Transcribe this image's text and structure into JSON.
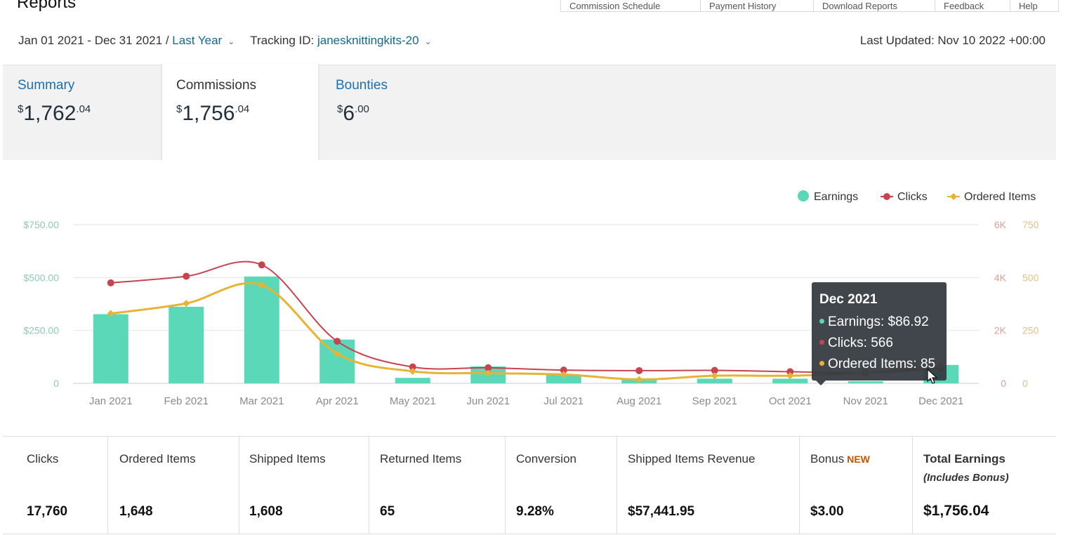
{
  "page": {
    "title": "Reports",
    "top_tabs": [
      "Commission Schedule",
      "Payment History",
      "Download Reports",
      "Feedback",
      "Help"
    ]
  },
  "filters": {
    "date_range": "Jan 01 2021 - Dec 31 2021 /",
    "period": "Last Year",
    "tracking_label": "Tracking ID:",
    "tracking_id": "janesknittingkits-20",
    "last_updated": "Last Updated: Nov 10 2022 +00:00"
  },
  "summary_tabs": [
    {
      "label": "Summary",
      "dollars": "1,762",
      "cents": ".04"
    },
    {
      "label": "Commissions",
      "dollars": "1,756",
      "cents": ".04"
    },
    {
      "label": "Bounties",
      "dollars": "6",
      "cents": ".00"
    }
  ],
  "currency_symbol": "$",
  "chart_data": {
    "type": "bar",
    "categories": [
      "Jan 2021",
      "Feb 2021",
      "Mar 2021",
      "Apr 2021",
      "May 2021",
      "Jun 2021",
      "Jul 2021",
      "Aug 2021",
      "Sep 2021",
      "Oct 2021",
      "Nov 2021",
      "Dec 2021"
    ],
    "series": [
      {
        "name": "Earnings",
        "type": "bar",
        "axis": "left",
        "color": "#5ad8b8",
        "values": [
          327,
          362,
          505,
          207,
          26,
          80,
          42,
          24,
          22,
          22,
          10,
          86.92
        ]
      },
      {
        "name": "Clicks",
        "type": "line",
        "axis": "right-clicks",
        "color": "#c7444f",
        "values": [
          3800,
          4050,
          4480,
          1590,
          620,
          590,
          500,
          480,
          490,
          440,
          400,
          566
        ]
      },
      {
        "name": "Ordered Items",
        "type": "line",
        "axis": "right-items",
        "color": "#e8b232",
        "values": [
          330,
          378,
          465,
          140,
          57,
          48,
          42,
          18,
          36,
          36,
          50,
          85
        ]
      }
    ],
    "left_axis": {
      "ticks": [
        "0",
        "$250.00",
        "$500.00",
        "$750.00"
      ],
      "range": [
        0,
        750
      ]
    },
    "right_axis_clicks": {
      "ticks": [
        "0",
        "2K",
        "4K",
        "6K"
      ],
      "range": [
        0,
        6000
      ]
    },
    "right_axis_items": {
      "ticks": [
        "0",
        "250",
        "500",
        "750"
      ],
      "range": [
        0,
        750
      ]
    },
    "legend": [
      "Earnings",
      "Clicks",
      "Ordered Items"
    ],
    "legend_position": "top-right",
    "grid": true
  },
  "tooltip": {
    "title": "Dec 2021",
    "earnings": "Earnings: $86.92",
    "clicks": "Clicks: 566",
    "ordered_items": "Ordered Items: 85"
  },
  "stats": [
    {
      "label": "Clicks",
      "value": "17,760"
    },
    {
      "label": "Ordered Items",
      "value": "1,648"
    },
    {
      "label": "Shipped Items",
      "value": "1,608"
    },
    {
      "label": "Returned Items",
      "value": "65"
    },
    {
      "label": "Conversion",
      "value": "9.28%"
    },
    {
      "label": "Shipped Items Revenue",
      "value": "$57,441.95"
    },
    {
      "label": "Bonus",
      "badge": "NEW",
      "value": "$3.00"
    },
    {
      "label": "Total Earnings",
      "sub": "(Includes Bonus)",
      "value": "$1,756.04"
    }
  ]
}
